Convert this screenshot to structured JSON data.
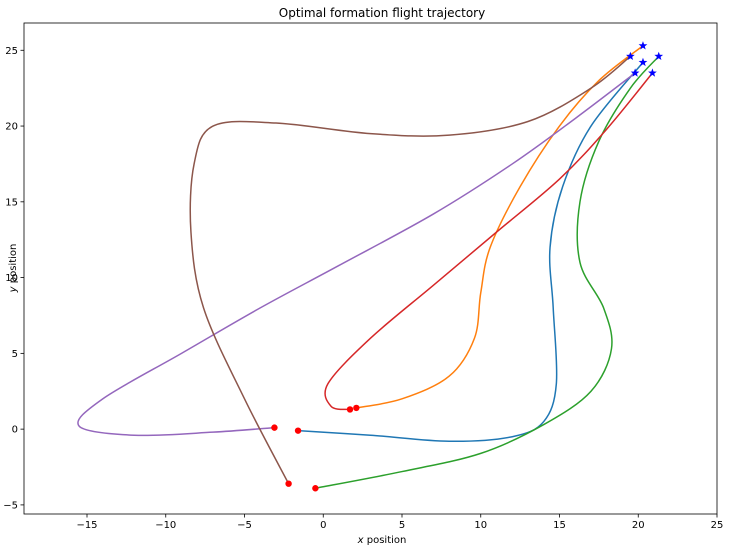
{
  "chart_data": {
    "type": "line",
    "title": "Optimal formation flight trajectory",
    "xlabel_var": "x",
    "xlabel_rest": " position",
    "ylabel_var": "y",
    "ylabel_rest": " position",
    "xlim": [
      -19,
      25
    ],
    "ylim": [
      -5.6,
      26.8
    ],
    "xticks": [
      -15,
      -10,
      -5,
      0,
      5,
      10,
      15,
      20,
      25
    ],
    "yticks": [
      -5,
      0,
      5,
      10,
      15,
      20,
      25
    ],
    "grid": false,
    "legend": "none",
    "start_marker_color": "#ff0000",
    "end_marker_color": "#0000ff",
    "series": [
      {
        "color": "#1f77b4",
        "points": [
          [
            -1.6,
            -0.1
          ],
          [
            3,
            -0.4
          ],
          [
            8,
            -0.8
          ],
          [
            12,
            -0.5
          ],
          [
            14,
            0.5
          ],
          [
            14.8,
            3
          ],
          [
            14.6,
            8
          ],
          [
            14.4,
            12
          ],
          [
            15.2,
            16
          ],
          [
            17,
            20
          ],
          [
            20.3,
            24.2
          ]
        ],
        "start": [
          -1.6,
          -0.1
        ],
        "end": [
          20.3,
          24.2
        ]
      },
      {
        "color": "#ff7f0e",
        "points": [
          [
            2.1,
            1.4
          ],
          [
            5,
            2
          ],
          [
            8,
            3.5
          ],
          [
            9.6,
            6
          ],
          [
            10,
            9
          ],
          [
            10.6,
            12
          ],
          [
            12.5,
            16
          ],
          [
            15,
            20
          ],
          [
            17.5,
            23
          ],
          [
            20.3,
            25.3
          ]
        ],
        "start": [
          2.1,
          1.4
        ],
        "end": [
          20.3,
          25.3
        ]
      },
      {
        "color": "#2ca02c",
        "points": [
          [
            -0.5,
            -3.9
          ],
          [
            5,
            -2.8
          ],
          [
            10,
            -1.6
          ],
          [
            14,
            0.3
          ],
          [
            17,
            2.5
          ],
          [
            18.3,
            5.3
          ],
          [
            17.8,
            8
          ],
          [
            16.3,
            11
          ],
          [
            16.3,
            15
          ],
          [
            17.5,
            19
          ],
          [
            19.5,
            22.5
          ],
          [
            21.3,
            24.6
          ]
        ],
        "start": [
          -0.5,
          -3.9
        ],
        "end": [
          21.3,
          24.6
        ]
      },
      {
        "color": "#d62728",
        "points": [
          [
            1.7,
            1.3
          ],
          [
            0.5,
            1.5
          ],
          [
            0.3,
            3
          ],
          [
            3,
            6
          ],
          [
            7,
            9.5
          ],
          [
            11,
            13
          ],
          [
            15,
            16.5
          ],
          [
            18,
            19.8
          ],
          [
            20.9,
            23.5
          ]
        ],
        "start": [
          1.7,
          1.3
        ],
        "end": [
          20.9,
          23.5
        ]
      },
      {
        "color": "#9467bd",
        "points": [
          [
            -3.1,
            0.1
          ],
          [
            -7,
            -0.2
          ],
          [
            -12,
            -0.4
          ],
          [
            -15.5,
            0.2
          ],
          [
            -14,
            2
          ],
          [
            -9,
            5
          ],
          [
            -4,
            8
          ],
          [
            1,
            10.8
          ],
          [
            7,
            14.2
          ],
          [
            12,
            17.5
          ],
          [
            16,
            20.5
          ],
          [
            19.8,
            23.5
          ]
        ],
        "start": [
          -3.1,
          0.1
        ],
        "end": [
          19.8,
          23.5
        ]
      },
      {
        "color": "#8c564b",
        "points": [
          [
            -2.2,
            -3.6
          ],
          [
            -5,
            2
          ],
          [
            -7.6,
            8
          ],
          [
            -8.4,
            13
          ],
          [
            -8.2,
            17.5
          ],
          [
            -7,
            20
          ],
          [
            -3,
            20.2
          ],
          [
            3,
            19.5
          ],
          [
            8,
            19.4
          ],
          [
            13,
            20.3
          ],
          [
            17,
            22.5
          ],
          [
            19.5,
            24.6
          ]
        ],
        "start": [
          -2.2,
          -3.6
        ],
        "end": [
          19.5,
          24.6
        ]
      }
    ]
  }
}
